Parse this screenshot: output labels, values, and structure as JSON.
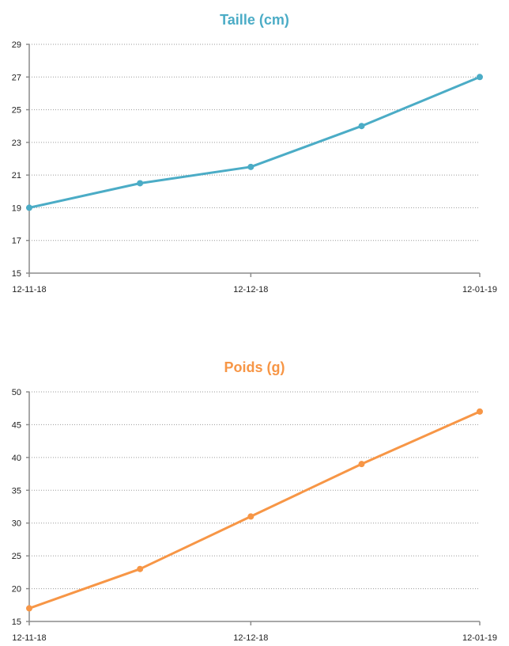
{
  "chart_data": [
    {
      "type": "line",
      "title": "Taille (cm)",
      "color": "#4bacc6",
      "x": [
        "2018-11-12",
        "2018-11-27",
        "2018-12-12",
        "2018-12-27",
        "2019-01-12"
      ],
      "values": [
        19,
        20.5,
        21.5,
        24,
        27
      ],
      "ylim": [
        15,
        29
      ],
      "yticks": [
        "15",
        "17",
        "19",
        "21",
        "23",
        "25",
        "27",
        "29"
      ],
      "xtick_labels": [
        "12-11-18",
        "12-12-18",
        "12-01-19"
      ],
      "grid": true
    },
    {
      "type": "line",
      "title": "Poids (g)",
      "color": "#f79646",
      "x": [
        "2018-11-12",
        "2018-11-27",
        "2018-12-12",
        "2018-12-27",
        "2019-01-12"
      ],
      "values": [
        17,
        23,
        31,
        39,
        47
      ],
      "ylim": [
        15,
        50
      ],
      "yticks": [
        "15",
        "20",
        "25",
        "30",
        "35",
        "40",
        "45",
        "50"
      ],
      "xtick_labels": [
        "12-11-18",
        "12-12-18",
        "12-01-19"
      ],
      "grid": true
    }
  ]
}
